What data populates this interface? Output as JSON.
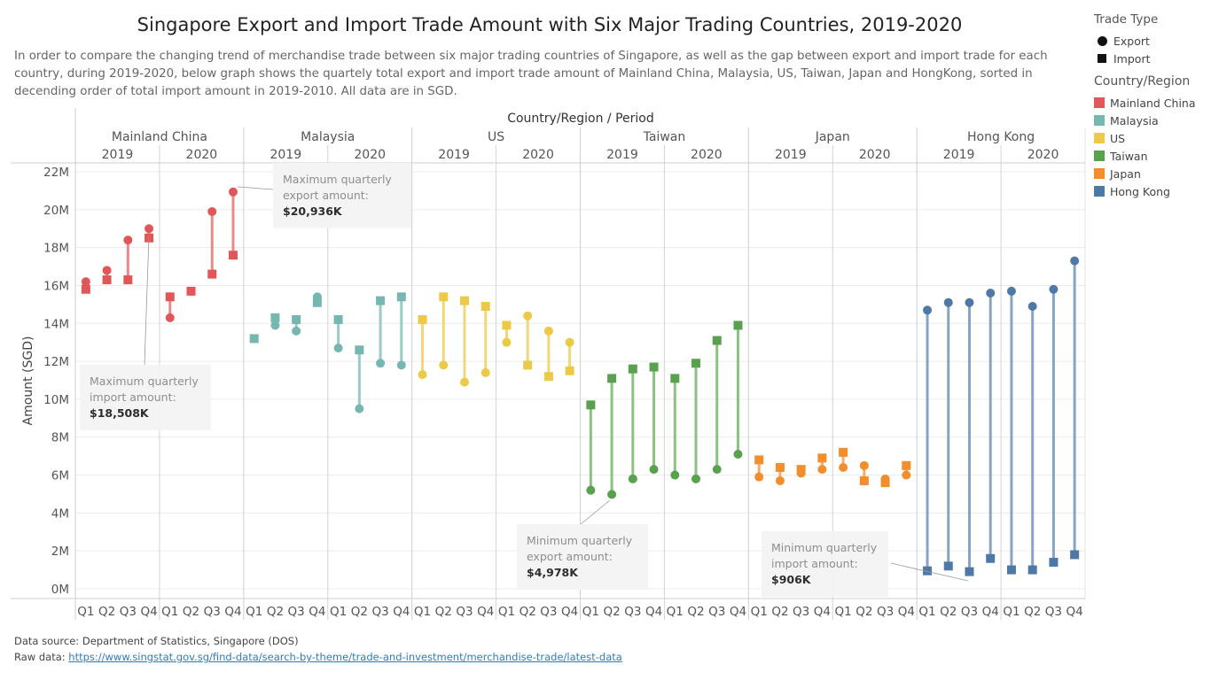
{
  "title": "Singapore Export and Import Trade Amount with Six Major Trading Countries, 2019-2020",
  "subtitle": "In order to compare the changing trend of merchandise trade between six major trading countries of Singapore, as well as the gap between export and import trade for each country, during 2019-2020, below graph shows the quartely total export and import trade amount of Mainland China, Malaysia, US, Taiwan, Japan and HongKong, sorted in decending order of total import amount in 2019-2010. All data are in SGD.",
  "legend": {
    "trade_type_title": "Trade Type",
    "trade_types": [
      {
        "label": "Export",
        "shape": "circle"
      },
      {
        "label": "Import",
        "shape": "square"
      }
    ],
    "country_title": "Country/Region",
    "countries": [
      {
        "label": "Mainland China",
        "color": "#e15759"
      },
      {
        "label": "Malaysia",
        "color": "#76b7b2"
      },
      {
        "label": "US",
        "color": "#edc948"
      },
      {
        "label": "Taiwan",
        "color": "#59a14f"
      },
      {
        "label": "Japan",
        "color": "#f28e2b"
      },
      {
        "label": "Hong Kong",
        "color": "#4e79a7"
      }
    ]
  },
  "annotations": [
    {
      "id": "max-export",
      "text": "Maximum quarterly export amount:",
      "value": "$20,936K"
    },
    {
      "id": "max-import",
      "text": "Maximum quarterly import amount:",
      "value": "$18,508K"
    },
    {
      "id": "min-export",
      "text": "Minimum quarterly export amount:",
      "value": "$4,978K"
    },
    {
      "id": "min-import",
      "text": "Minimum quarterly import amount:",
      "value": "$906K"
    }
  ],
  "footer": {
    "source_label": "Data source: Department of Statistics, Singapore (DOS)",
    "raw_label": "Raw data: ",
    "raw_link": "https://www.singstat.gov.sg/find-data/search-by-theme/trade-and-investment/merchandise-trade/latest-data"
  },
  "chart_data": {
    "type": "scatter",
    "header_title": "Country/Region  /  Period",
    "ylabel": "Amount (SGD)",
    "ylim": [
      0,
      22000000
    ],
    "yticks": [
      0,
      2000000,
      4000000,
      6000000,
      8000000,
      10000000,
      12000000,
      14000000,
      16000000,
      18000000,
      20000000,
      22000000
    ],
    "ytick_labels": [
      "0M",
      "2M",
      "4M",
      "6M",
      "8M",
      "10M",
      "12M",
      "14M",
      "16M",
      "18M",
      "20M",
      "22M"
    ],
    "years": [
      "2019",
      "2020"
    ],
    "quarters": [
      "Q1",
      "Q2",
      "Q3",
      "Q4"
    ],
    "grid": true,
    "series": [
      {
        "name": "Mainland China",
        "color": "#e15759",
        "line_color": "#e8898b",
        "export": [
          16200000,
          16800000,
          18400000,
          19000000,
          14300000,
          15700000,
          19900000,
          20936000
        ],
        "import": [
          15800000,
          16300000,
          16300000,
          18508000,
          15400000,
          15700000,
          16600000,
          17600000
        ]
      },
      {
        "name": "Malaysia",
        "color": "#76b7b2",
        "line_color": "#9ccac6",
        "export": [
          13200000,
          13900000,
          13600000,
          15400000,
          12700000,
          9500000,
          11900000,
          11800000
        ],
        "import": [
          13200000,
          14300000,
          14200000,
          15100000,
          14200000,
          12600000,
          15200000,
          15400000
        ]
      },
      {
        "name": "US",
        "color": "#edc948",
        "line_color": "#f2d77a",
        "export": [
          11300000,
          11800000,
          10900000,
          11400000,
          13000000,
          14400000,
          13600000,
          13000000
        ],
        "import": [
          14200000,
          15400000,
          15200000,
          14900000,
          13900000,
          11800000,
          11200000,
          11500000
        ]
      },
      {
        "name": "Taiwan",
        "color": "#59a14f",
        "line_color": "#8ac282",
        "export": [
          5200000,
          4978000,
          5800000,
          6300000,
          6000000,
          5800000,
          6300000,
          7100000
        ],
        "import": [
          9700000,
          11100000,
          11600000,
          11700000,
          11100000,
          11900000,
          13100000,
          13900000
        ],
        "line_width": 3
      },
      {
        "name": "Japan",
        "color": "#f28e2b",
        "line_color": "#f5ad66",
        "export": [
          5900000,
          5700000,
          6100000,
          6300000,
          6400000,
          6500000,
          5800000,
          6000000
        ],
        "import": [
          6800000,
          6400000,
          6300000,
          6900000,
          7200000,
          5700000,
          5600000,
          6500000
        ]
      },
      {
        "name": "Hong Kong",
        "color": "#4e79a7",
        "line_color": "#87a4c4",
        "export": [
          14700000,
          15100000,
          15100000,
          15600000,
          15700000,
          14900000,
          15800000,
          17300000
        ],
        "import": [
          950000,
          1200000,
          906000,
          1600000,
          1000000,
          1000000,
          1400000,
          1800000
        ]
      }
    ]
  }
}
